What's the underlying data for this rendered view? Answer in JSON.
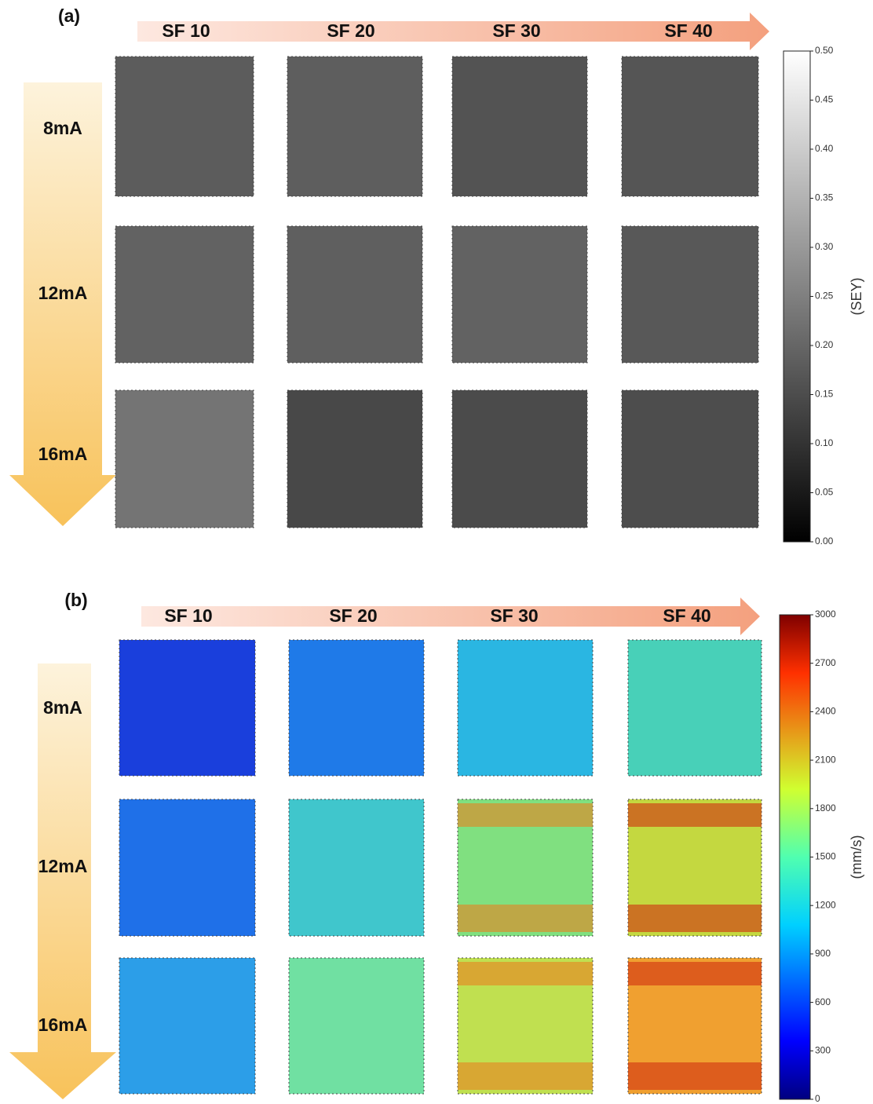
{
  "panels": [
    {
      "label": "(a)",
      "columns": [
        "SF 10",
        "SF 20",
        "SF 30",
        "SF 40"
      ],
      "rows": [
        "8mA",
        "12mA",
        "16mA"
      ],
      "colorbar": {
        "label": "(SEY)",
        "lim": [
          0,
          0.5
        ],
        "ticks": [
          {
            "value": 0,
            "label": "0.00"
          },
          {
            "value": 0.05,
            "label": "0.05"
          },
          {
            "value": 0.1,
            "label": "0.10"
          },
          {
            "value": 0.15,
            "label": "0.15"
          },
          {
            "value": 0.2,
            "label": "0.20"
          },
          {
            "value": 0.25,
            "label": "0.25"
          },
          {
            "value": 0.3,
            "label": "0.30"
          },
          {
            "value": 0.35,
            "label": "0.35"
          },
          {
            "value": 0.4,
            "label": "0.40"
          },
          {
            "value": 0.45,
            "label": "0.45"
          },
          {
            "value": 0.5,
            "label": "0.50"
          }
        ]
      }
    },
    {
      "label": "(b)",
      "columns": [
        "SF 10",
        "SF 20",
        "SF 30",
        "SF 40"
      ],
      "rows": [
        "8mA",
        "12mA",
        "16mA"
      ],
      "colorbar": {
        "label": "(mm/s)",
        "lim": [
          0,
          3000
        ],
        "ticks": [
          0,
          300,
          600,
          900,
          1200,
          1500,
          1800,
          2100,
          2400,
          2700,
          3000
        ]
      }
    }
  ]
}
